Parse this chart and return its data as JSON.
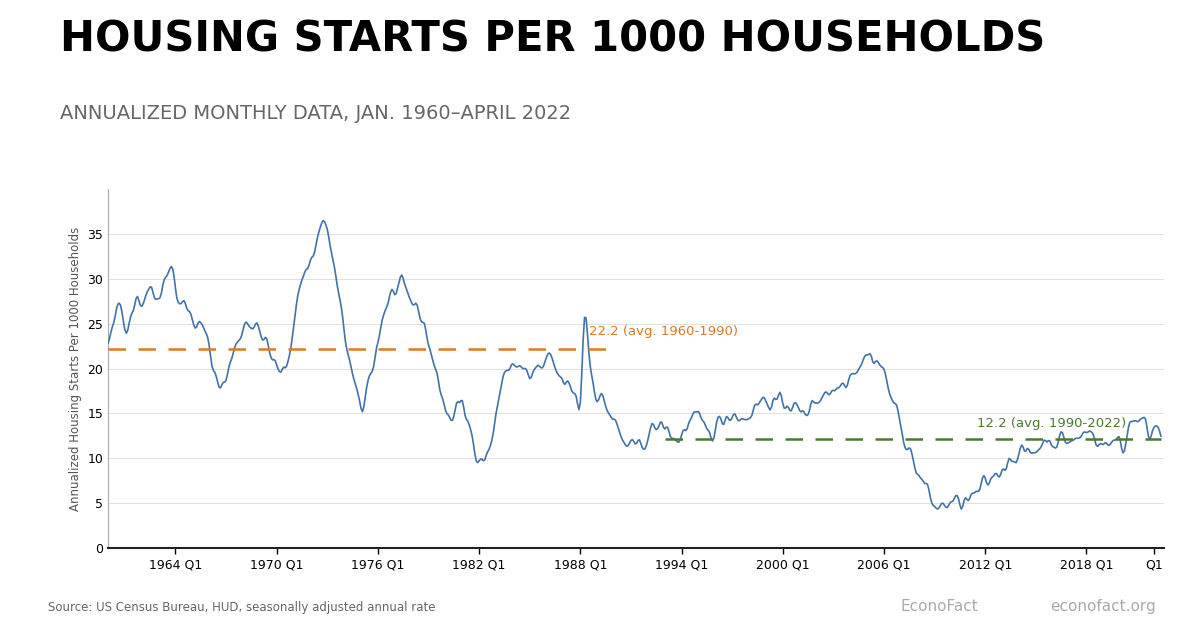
{
  "title": "HOUSING STARTS PER 1000 HOUSEHOLDS",
  "subtitle": "ANNUALIZED MONTHLY DATA, JAN. 1960–APRIL 2022",
  "ylabel": "Annualized Housing Starts Per 1000 Households",
  "source": "Source: US Census Bureau, HUD, seasonally adjusted annual rate",
  "econofact": "EconoFact",
  "econofact_url": "econofact.org",
  "line_color": "#4472a8",
  "avg1_value": 22.2,
  "avg1_label": "22.2 (avg. 1960-1990)",
  "avg1_color": "#e07820",
  "avg1_start_year": 1960.0,
  "avg1_end_year": 1990.0,
  "avg2_value": 12.2,
  "avg2_label": "12.2 (avg. 1990-2022)",
  "avg2_color": "#4a7a30",
  "avg2_start_year": 1993.0,
  "avg2_end_year": 2022.4,
  "ylim": [
    0,
    40
  ],
  "yticks": [
    0,
    5,
    10,
    15,
    20,
    25,
    30,
    35
  ],
  "title_fontsize": 30,
  "subtitle_fontsize": 14,
  "title_color": "#000000",
  "subtitle_color": "#666666",
  "background_color": "#ffffff",
  "line_width": 1.2,
  "key_points": [
    [
      1960.0,
      22.5
    ],
    [
      1960.25,
      24.0
    ],
    [
      1960.5,
      26.0
    ],
    [
      1960.75,
      27.0
    ],
    [
      1961.0,
      25.0
    ],
    [
      1961.25,
      26.0
    ],
    [
      1961.5,
      27.0
    ],
    [
      1961.75,
      28.0
    ],
    [
      1962.0,
      27.5
    ],
    [
      1962.25,
      28.5
    ],
    [
      1962.5,
      29.0
    ],
    [
      1962.75,
      28.0
    ],
    [
      1963.0,
      28.5
    ],
    [
      1963.25,
      29.5
    ],
    [
      1963.5,
      30.5
    ],
    [
      1963.75,
      32.0
    ],
    [
      1964.0,
      29.0
    ],
    [
      1964.25,
      27.5
    ],
    [
      1964.5,
      27.0
    ],
    [
      1964.75,
      26.5
    ],
    [
      1965.0,
      25.5
    ],
    [
      1965.25,
      25.0
    ],
    [
      1965.5,
      24.5
    ],
    [
      1965.75,
      24.0
    ],
    [
      1966.0,
      22.0
    ],
    [
      1966.25,
      20.0
    ],
    [
      1966.5,
      19.0
    ],
    [
      1966.75,
      18.0
    ],
    [
      1967.0,
      19.0
    ],
    [
      1967.25,
      20.5
    ],
    [
      1967.5,
      22.0
    ],
    [
      1967.75,
      23.5
    ],
    [
      1968.0,
      24.5
    ],
    [
      1968.25,
      25.5
    ],
    [
      1968.5,
      25.0
    ],
    [
      1968.75,
      24.5
    ],
    [
      1969.0,
      24.0
    ],
    [
      1969.25,
      23.5
    ],
    [
      1969.5,
      22.0
    ],
    [
      1969.75,
      21.0
    ],
    [
      1970.0,
      20.0
    ],
    [
      1970.25,
      19.5
    ],
    [
      1970.5,
      20.0
    ],
    [
      1970.75,
      22.0
    ],
    [
      1971.0,
      25.0
    ],
    [
      1971.25,
      28.0
    ],
    [
      1971.5,
      30.0
    ],
    [
      1971.75,
      31.0
    ],
    [
      1972.0,
      32.0
    ],
    [
      1972.25,
      33.5
    ],
    [
      1972.5,
      35.0
    ],
    [
      1972.75,
      36.5
    ],
    [
      1973.0,
      35.0
    ],
    [
      1973.25,
      33.0
    ],
    [
      1973.5,
      30.0
    ],
    [
      1973.75,
      27.0
    ],
    [
      1974.0,
      24.0
    ],
    [
      1974.25,
      22.0
    ],
    [
      1974.5,
      19.0
    ],
    [
      1974.75,
      17.0
    ],
    [
      1975.0,
      15.0
    ],
    [
      1975.25,
      17.0
    ],
    [
      1975.5,
      19.0
    ],
    [
      1975.75,
      21.0
    ],
    [
      1976.0,
      23.0
    ],
    [
      1976.25,
      25.5
    ],
    [
      1976.5,
      27.0
    ],
    [
      1976.75,
      28.0
    ],
    [
      1977.0,
      28.5
    ],
    [
      1977.25,
      29.0
    ],
    [
      1977.5,
      28.5
    ],
    [
      1977.75,
      28.0
    ],
    [
      1978.0,
      27.5
    ],
    [
      1978.25,
      27.0
    ],
    [
      1978.5,
      26.0
    ],
    [
      1978.75,
      25.0
    ],
    [
      1979.0,
      23.0
    ],
    [
      1979.25,
      21.0
    ],
    [
      1979.5,
      19.0
    ],
    [
      1979.75,
      17.5
    ],
    [
      1980.0,
      15.5
    ],
    [
      1980.25,
      14.5
    ],
    [
      1980.5,
      15.0
    ],
    [
      1980.75,
      16.0
    ],
    [
      1981.0,
      15.5
    ],
    [
      1981.25,
      14.5
    ],
    [
      1981.5,
      13.0
    ],
    [
      1981.75,
      11.5
    ],
    [
      1982.0,
      10.5
    ],
    [
      1982.25,
      10.0
    ],
    [
      1982.5,
      10.5
    ],
    [
      1982.75,
      12.0
    ],
    [
      1983.0,
      15.0
    ],
    [
      1983.25,
      17.5
    ],
    [
      1983.5,
      19.0
    ],
    [
      1983.75,
      20.0
    ],
    [
      1984.0,
      20.5
    ],
    [
      1984.25,
      20.5
    ],
    [
      1984.5,
      20.0
    ],
    [
      1984.75,
      19.5
    ],
    [
      1985.0,
      19.0
    ],
    [
      1985.25,
      19.5
    ],
    [
      1985.5,
      20.0
    ],
    [
      1985.75,
      20.0
    ],
    [
      1986.0,
      20.5
    ],
    [
      1986.25,
      21.0
    ],
    [
      1986.5,
      20.0
    ],
    [
      1986.75,
      19.0
    ],
    [
      1987.0,
      18.5
    ],
    [
      1987.25,
      18.0
    ],
    [
      1987.5,
      17.5
    ],
    [
      1987.75,
      17.0
    ],
    [
      1988.0,
      16.5
    ],
    [
      1988.25,
      26.0
    ],
    [
      1988.5,
      22.0
    ],
    [
      1988.75,
      19.0
    ],
    [
      1989.0,
      17.0
    ],
    [
      1989.25,
      16.5
    ],
    [
      1989.5,
      16.0
    ],
    [
      1989.75,
      15.0
    ],
    [
      1990.0,
      14.0
    ],
    [
      1990.25,
      13.0
    ],
    [
      1990.5,
      12.0
    ],
    [
      1990.75,
      11.5
    ],
    [
      1991.0,
      11.0
    ],
    [
      1991.25,
      11.0
    ],
    [
      1991.5,
      11.5
    ],
    [
      1991.75,
      12.0
    ],
    [
      1992.0,
      12.5
    ],
    [
      1992.25,
      13.0
    ],
    [
      1992.5,
      13.5
    ],
    [
      1992.75,
      13.5
    ],
    [
      1993.0,
      13.5
    ],
    [
      1993.25,
      13.0
    ],
    [
      1993.5,
      12.5
    ],
    [
      1993.75,
      12.0
    ],
    [
      1994.0,
      12.5
    ],
    [
      1994.25,
      13.5
    ],
    [
      1994.5,
      14.0
    ],
    [
      1994.75,
      14.5
    ],
    [
      1995.0,
      14.0
    ],
    [
      1995.25,
      13.5
    ],
    [
      1995.5,
      13.0
    ],
    [
      1995.75,
      13.0
    ],
    [
      1996.0,
      13.5
    ],
    [
      1996.25,
      14.0
    ],
    [
      1996.5,
      14.5
    ],
    [
      1996.75,
      15.0
    ],
    [
      1997.0,
      15.0
    ],
    [
      1997.25,
      15.0
    ],
    [
      1997.5,
      14.5
    ],
    [
      1997.75,
      14.5
    ],
    [
      1998.0,
      15.0
    ],
    [
      1998.25,
      15.5
    ],
    [
      1998.5,
      16.0
    ],
    [
      1998.75,
      16.5
    ],
    [
      1999.0,
      16.5
    ],
    [
      1999.25,
      16.5
    ],
    [
      1999.5,
      16.0
    ],
    [
      1999.75,
      16.0
    ],
    [
      2000.0,
      16.0
    ],
    [
      2000.25,
      16.5
    ],
    [
      2000.5,
      16.0
    ],
    [
      2000.75,
      15.5
    ],
    [
      2001.0,
      15.0
    ],
    [
      2001.25,
      15.0
    ],
    [
      2001.5,
      15.5
    ],
    [
      2001.75,
      16.0
    ],
    [
      2002.0,
      16.5
    ],
    [
      2002.25,
      17.0
    ],
    [
      2002.5,
      17.5
    ],
    [
      2002.75,
      17.5
    ],
    [
      2003.0,
      17.5
    ],
    [
      2003.25,
      18.0
    ],
    [
      2003.5,
      18.5
    ],
    [
      2003.75,
      19.0
    ],
    [
      2004.0,
      19.5
    ],
    [
      2004.25,
      20.0
    ],
    [
      2004.5,
      20.5
    ],
    [
      2004.75,
      21.0
    ],
    [
      2005.0,
      21.5
    ],
    [
      2005.25,
      21.5
    ],
    [
      2005.5,
      21.0
    ],
    [
      2005.75,
      20.5
    ],
    [
      2006.0,
      19.5
    ],
    [
      2006.25,
      18.0
    ],
    [
      2006.5,
      16.5
    ],
    [
      2006.75,
      15.0
    ],
    [
      2007.0,
      13.5
    ],
    [
      2007.25,
      12.5
    ],
    [
      2007.5,
      11.0
    ],
    [
      2007.75,
      9.5
    ],
    [
      2008.0,
      8.5
    ],
    [
      2008.25,
      7.5
    ],
    [
      2008.5,
      6.5
    ],
    [
      2008.75,
      5.5
    ],
    [
      2009.0,
      4.8
    ],
    [
      2009.25,
      4.5
    ],
    [
      2009.5,
      4.7
    ],
    [
      2009.75,
      5.0
    ],
    [
      2010.0,
      5.0
    ],
    [
      2010.25,
      5.0
    ],
    [
      2010.5,
      5.0
    ],
    [
      2010.75,
      5.2
    ],
    [
      2011.0,
      5.2
    ],
    [
      2011.25,
      5.5
    ],
    [
      2011.5,
      6.0
    ],
    [
      2011.75,
      6.5
    ],
    [
      2012.0,
      7.0
    ],
    [
      2012.25,
      7.5
    ],
    [
      2012.5,
      8.0
    ],
    [
      2012.75,
      8.5
    ],
    [
      2013.0,
      9.0
    ],
    [
      2013.25,
      9.5
    ],
    [
      2013.5,
      10.0
    ],
    [
      2013.75,
      10.5
    ],
    [
      2014.0,
      10.5
    ],
    [
      2014.25,
      10.5
    ],
    [
      2014.5,
      10.5
    ],
    [
      2014.75,
      10.5
    ],
    [
      2015.0,
      11.0
    ],
    [
      2015.25,
      11.5
    ],
    [
      2015.5,
      12.0
    ],
    [
      2015.75,
      12.0
    ],
    [
      2016.0,
      12.0
    ],
    [
      2016.25,
      12.0
    ],
    [
      2016.5,
      12.0
    ],
    [
      2016.75,
      12.0
    ],
    [
      2017.0,
      12.0
    ],
    [
      2017.25,
      12.0
    ],
    [
      2017.5,
      12.0
    ],
    [
      2017.75,
      12.5
    ],
    [
      2018.0,
      13.0
    ],
    [
      2018.25,
      13.0
    ],
    [
      2018.5,
      12.5
    ],
    [
      2018.75,
      12.0
    ],
    [
      2019.0,
      11.5
    ],
    [
      2019.25,
      11.5
    ],
    [
      2019.5,
      11.5
    ],
    [
      2019.75,
      12.0
    ],
    [
      2020.0,
      12.5
    ],
    [
      2020.25,
      11.0
    ],
    [
      2020.5,
      13.5
    ],
    [
      2020.75,
      14.5
    ],
    [
      2021.0,
      14.5
    ],
    [
      2021.25,
      14.0
    ],
    [
      2021.5,
      13.5
    ],
    [
      2021.75,
      13.0
    ],
    [
      2022.0,
      13.5
    ],
    [
      2022.25,
      14.0
    ]
  ],
  "x_label_years": [
    1964,
    1970,
    1976,
    1982,
    1988,
    1994,
    2000,
    2006,
    2012,
    2018
  ],
  "x_extra_tick": 2022.0,
  "xlim": [
    1960.0,
    2022.6
  ]
}
